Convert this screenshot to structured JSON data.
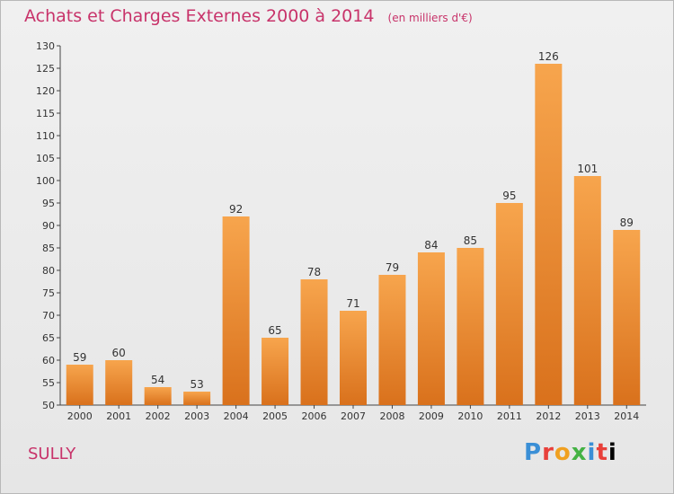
{
  "header": {
    "title": "Achats et Charges Externes 2000 à 2014",
    "unit": "(en milliers d'€)"
  },
  "footer": {
    "place": "SULLY",
    "brand_letters": [
      "P",
      "r",
      "o",
      "x",
      "i",
      "t",
      "i"
    ]
  },
  "colors": {
    "bar_top": "#f7a54d",
    "bar_bottom": "#d9711c",
    "title": "#c8336a",
    "grid": "#cccccc"
  },
  "chart_data": {
    "type": "bar",
    "title": "Achats et Charges Externes 2000 à 2014",
    "subtitle": "(en milliers d'€)",
    "xlabel": "",
    "ylabel": "",
    "categories": [
      "2000",
      "2001",
      "2002",
      "2003",
      "2004",
      "2005",
      "2006",
      "2007",
      "2008",
      "2009",
      "2010",
      "2011",
      "2012",
      "2013",
      "2014"
    ],
    "values": [
      59,
      60,
      54,
      53,
      92,
      65,
      78,
      71,
      79,
      84,
      85,
      95,
      126,
      101,
      89
    ],
    "ylim": [
      50,
      130
    ],
    "yticks": [
      50,
      55,
      60,
      65,
      70,
      75,
      80,
      85,
      90,
      95,
      100,
      105,
      110,
      115,
      120,
      125,
      130
    ],
    "grid": false
  }
}
